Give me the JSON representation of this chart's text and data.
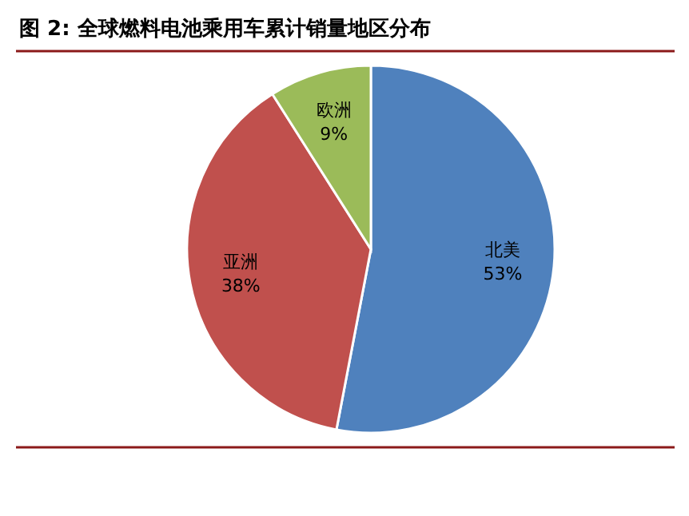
{
  "chart_data": {
    "type": "pie",
    "title": "图 2: 全球燃料电池乘用车累计销量地区分布",
    "categories": [
      "北美",
      "亚洲",
      "欧洲"
    ],
    "values": [
      53,
      38,
      9
    ],
    "colors": [
      "#4f81bd",
      "#c0504d",
      "#9bbb59"
    ],
    "value_labels": [
      "53%",
      "38%",
      "9%"
    ]
  }
}
